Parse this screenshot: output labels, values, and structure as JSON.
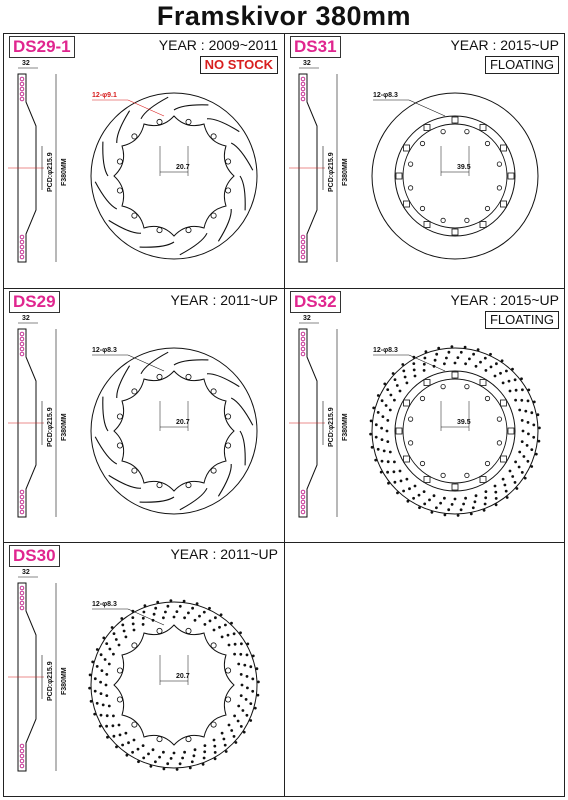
{
  "title": "Framskivor 380mm",
  "panels": [
    {
      "id": "ds29-1",
      "code": "DS29-1",
      "year": "YEAR : 2009~2011",
      "badge": "NO STOCK",
      "badge_style": "red",
      "hole_label": "12-φ9.1",
      "hole_label_red": true,
      "offset": "20.7",
      "pcd": "PCD:φ215.9",
      "dia": "F380MM",
      "thickness": "32",
      "style": "slotted",
      "bell": "scallop"
    },
    {
      "id": "ds31",
      "code": "DS31",
      "year": "YEAR : 2015~UP",
      "badge": "FLOATING",
      "badge_style": "black",
      "hole_label": "12-φ8.3",
      "hole_label_red": false,
      "offset": "39.5",
      "pcd": "PCD:φ215.9",
      "dia": "F380MM",
      "thickness": "32",
      "style": "plain",
      "bell": "floating"
    },
    {
      "id": "ds29",
      "code": "DS29",
      "year": "YEAR : 2011~UP",
      "badge": "",
      "badge_style": "",
      "hole_label": "12-φ8.3",
      "hole_label_red": false,
      "offset": "20.7",
      "pcd": "PCD:φ215.9",
      "dia": "F380MM",
      "thickness": "32",
      "style": "slotted",
      "bell": "scallop"
    },
    {
      "id": "ds32",
      "code": "DS32",
      "year": "YEAR : 2015~UP",
      "badge": "FLOATING",
      "badge_style": "black",
      "hole_label": "12-φ8.3",
      "hole_label_red": false,
      "offset": "39.5",
      "pcd": "PCD:φ215.9",
      "dia": "F380MM",
      "thickness": "32",
      "style": "drilled",
      "bell": "floating"
    },
    {
      "id": "ds30",
      "code": "DS30",
      "year": "YEAR : 2011~UP",
      "badge": "",
      "badge_style": "",
      "hole_label": "12-φ8.3",
      "hole_label_red": false,
      "offset": "20.7",
      "pcd": "PCD:φ215.9",
      "dia": "F380MM",
      "thickness": "32",
      "style": "drilled",
      "bell": "scallop"
    }
  ]
}
